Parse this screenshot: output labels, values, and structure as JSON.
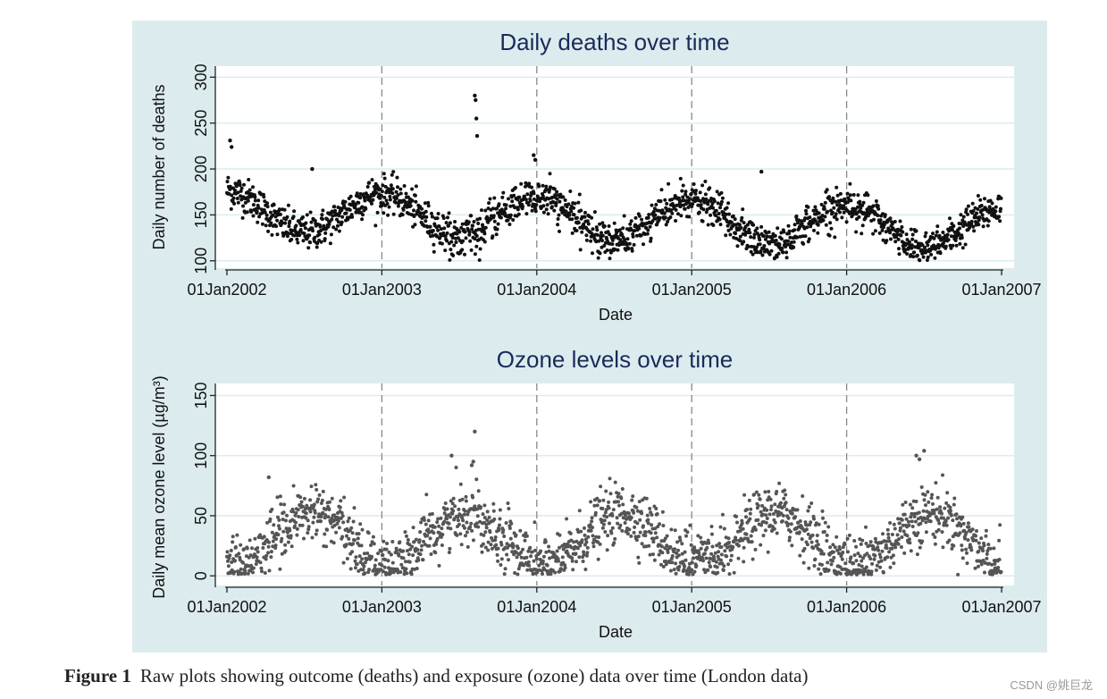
{
  "chart_data": [
    {
      "type": "scatter",
      "title": "Daily deaths over time",
      "xlabel": "Date",
      "ylabel": "Daily number of deaths",
      "x_tick_labels": [
        "01Jan2002",
        "01Jan2003",
        "01Jan2004",
        "01Jan2005",
        "01Jan2006",
        "01Jan2007"
      ],
      "x_range_years": [
        2002,
        2007
      ],
      "y_ticks": [
        100,
        150,
        200,
        250,
        300
      ],
      "ylim": [
        92,
        312
      ],
      "vertical_reference_lines": [
        "01Jan2003",
        "01Jan2004",
        "01Jan2005",
        "01Jan2006"
      ],
      "grid": true,
      "point_color": "#111111",
      "series_description": "daily deaths, seasonal peaks in winter (~170-200), troughs in summer (~120-140), outliers ~280 in Aug 2003",
      "seasonal_model": {
        "base_2002": 155,
        "trend_per_year": -4,
        "amplitude": 22,
        "noise": 14
      },
      "outliers": [
        {
          "x": 2003.6,
          "y": 280
        },
        {
          "x": 2003.605,
          "y": 275
        },
        {
          "x": 2003.61,
          "y": 255
        },
        {
          "x": 2003.615,
          "y": 236
        },
        {
          "x": 2002.02,
          "y": 231
        },
        {
          "x": 2002.03,
          "y": 224
        },
        {
          "x": 2003.98,
          "y": 215
        },
        {
          "x": 2003.99,
          "y": 210
        },
        {
          "x": 2005.45,
          "y": 197
        },
        {
          "x": 2002.55,
          "y": 200
        }
      ]
    },
    {
      "type": "scatter",
      "title": "Ozone levels over time",
      "xlabel": "Date",
      "ylabel": "Daily mean ozone level (µg/m³)",
      "x_tick_labels": [
        "01Jan2002",
        "01Jan2003",
        "01Jan2004",
        "01Jan2005",
        "01Jan2006",
        "01Jan2007"
      ],
      "x_range_years": [
        2002,
        2007
      ],
      "y_ticks": [
        0,
        50,
        100,
        150
      ],
      "ylim": [
        -8,
        160
      ],
      "vertical_reference_lines": [
        "01Jan2003",
        "01Jan2004",
        "01Jan2005",
        "01Jan2006"
      ],
      "grid": true,
      "point_color": "#555555",
      "series_description": "daily mean ozone, summer peaks (~50-80), winter lows (~0-20), outliers up to 120 in Aug 2003",
      "seasonal_model": {
        "base": 30,
        "amplitude": 22,
        "noise": 12
      },
      "outliers": [
        {
          "x": 2003.6,
          "y": 120
        },
        {
          "x": 2003.59,
          "y": 95
        },
        {
          "x": 2003.58,
          "y": 92
        },
        {
          "x": 2003.45,
          "y": 100
        },
        {
          "x": 2006.5,
          "y": 104
        },
        {
          "x": 2006.45,
          "y": 100
        },
        {
          "x": 2006.47,
          "y": 97
        },
        {
          "x": 2002.27,
          "y": 82
        }
      ]
    }
  ],
  "caption": {
    "label": "Figure 1",
    "text": "Raw plots showing outcome (deaths) and exposure (ozone) data over time (London data)"
  },
  "watermark": "CSDN @姚巨龙"
}
